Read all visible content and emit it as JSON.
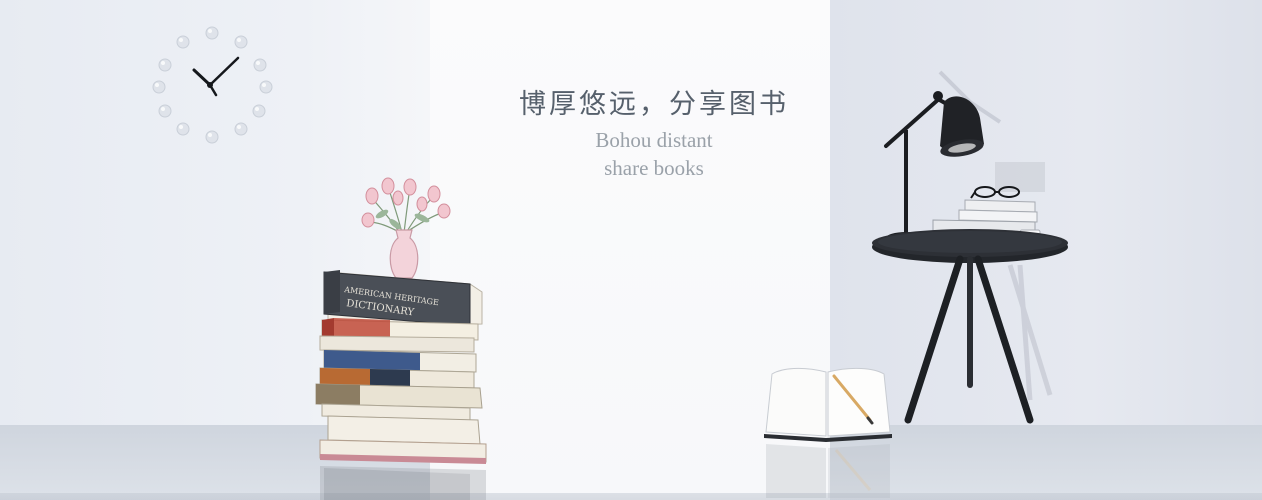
{
  "banner": {
    "title_cn": "博厚悠远，分享图书",
    "subtitle_line1": "Bohou distant",
    "subtitle_line2": "share books"
  },
  "colors": {
    "wall": "#eef1f6",
    "center_panel": "#f8f9fa",
    "title_text": "#56606c",
    "subtitle_text": "#9aa1a9",
    "table": "#1f2226"
  },
  "icons": [
    "wall-clock-icon",
    "flower-vase-icon",
    "book-stack-icon",
    "open-book-icon",
    "desk-lamp-icon",
    "side-table-icon",
    "glasses-icon",
    "mug-icon"
  ]
}
